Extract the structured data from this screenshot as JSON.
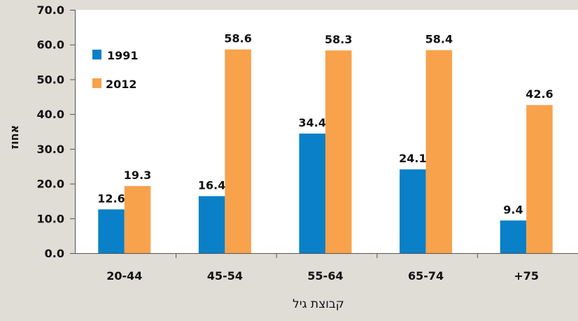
{
  "chart_data": {
    "type": "bar",
    "title": "",
    "xlabel": "קבוצת גיל",
    "ylabel": "אחוז",
    "ylim": [
      0,
      70
    ],
    "yticks": [
      "0.0",
      "10.0",
      "20.0",
      "30.0",
      "40.0",
      "50.0",
      "60.0",
      "70.0"
    ],
    "categories": [
      "20-44",
      "45-54",
      "55-64",
      "65-74",
      "+75"
    ],
    "series": [
      {
        "name": "1991",
        "color": "#0a80c8",
        "values": [
          12.6,
          16.4,
          34.4,
          24.1,
          9.4
        ],
        "labels": [
          "12.6",
          "16.4",
          "34.4",
          "24.1",
          "9.4"
        ]
      },
      {
        "name": "2012",
        "color": "#f8a24c",
        "values": [
          19.3,
          58.6,
          58.3,
          58.4,
          42.6
        ],
        "labels": [
          "19.3",
          "58.6",
          "58.3",
          "58.4",
          "42.6"
        ]
      }
    ],
    "grid": false,
    "legend": "top-left",
    "background": "#e0dcd6",
    "plot_background": "#ffffff"
  }
}
